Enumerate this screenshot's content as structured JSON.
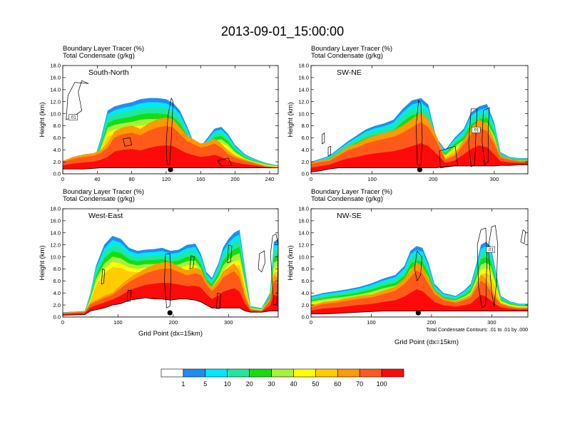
{
  "title": "2013-09-01_15:00:00",
  "colors": {
    "contour_line": "#000000",
    "marker": "#000000"
  },
  "colorbar": {
    "levels": [
      "1",
      "5",
      "10",
      "20",
      "30",
      "40",
      "50",
      "60",
      "70",
      "100"
    ],
    "colors": [
      "#ffffff",
      "#1e8ef0",
      "#00e8ff",
      "#1fe89a",
      "#14dd10",
      "#a8f03a",
      "#ffff00",
      "#ffcc00",
      "#ff9a00",
      "#ff5a1a",
      "#ff0a0a"
    ]
  },
  "chart_data": [
    {
      "type": "heatmap",
      "panel_label": "South-North",
      "subtitle_1": "Boundary Layer Tracer   (%)",
      "subtitle_2": "Total Condensate   (g/kg)",
      "ylabel": "Height (km)",
      "xlabel": "",
      "xlim": [
        0,
        250
      ],
      "ylim": [
        0,
        18
      ],
      "xticks": [
        "0",
        "40",
        "80",
        "120",
        "160",
        "200",
        "240"
      ],
      "xtick_values": [
        0,
        40,
        80,
        120,
        160,
        200,
        240
      ],
      "yticks": [
        "0.0",
        "2.0",
        "4.0",
        "6.0",
        "8.0",
        "10.0",
        "12.0",
        "14.0",
        "16.0",
        "18.0"
      ],
      "marker_x": 125,
      "contour_tag": ".01",
      "contour_tag_pos": [
        12,
        9.4
      ],
      "columns": [
        [
          0,
          0.8,
          1.8,
          0
        ],
        [
          12,
          0.8,
          2.3,
          0
        ],
        [
          24,
          0.8,
          2.6,
          0
        ],
        [
          36,
          0.9,
          2.8,
          2.2
        ],
        [
          44,
          1.0,
          3.2,
          5.8
        ],
        [
          52,
          1.0,
          4.0,
          10.5
        ],
        [
          60,
          1.0,
          5.5,
          11.2
        ],
        [
          70,
          1.0,
          6.0,
          11.6
        ],
        [
          80,
          1.0,
          6.2,
          11.9
        ],
        [
          90,
          1.0,
          5.8,
          12.4
        ],
        [
          100,
          1.0,
          6.5,
          12.6
        ],
        [
          110,
          1.0,
          7.0,
          12.6
        ],
        [
          120,
          1.0,
          7.2,
          12.4
        ],
        [
          128,
          1.0,
          7.0,
          11.8
        ],
        [
          136,
          1.0,
          6.0,
          10.5
        ],
        [
          144,
          1.0,
          5.0,
          8.0
        ],
        [
          152,
          1.0,
          4.5,
          5.2
        ],
        [
          160,
          1.0,
          4.0,
          4.6
        ],
        [
          168,
          1.0,
          4.2,
          6.0
        ],
        [
          176,
          1.0,
          4.6,
          7.5
        ],
        [
          184,
          1.0,
          4.0,
          7.8
        ],
        [
          192,
          1.0,
          3.0,
          6.6
        ],
        [
          200,
          1.0,
          2.5,
          4.8
        ],
        [
          212,
          1.0,
          2.0,
          3.2
        ],
        [
          224,
          1.0,
          1.6,
          2.4
        ],
        [
          236,
          1.0,
          1.2,
          1.8
        ],
        [
          250,
          1.0,
          1.0,
          1.4
        ]
      ],
      "contours": [
        [
          [
            30,
            15
          ],
          [
            22,
            15.5
          ],
          [
            18,
            13.6
          ],
          [
            22,
            10.5
          ],
          [
            12,
            9.5
          ],
          [
            4,
            9.0
          ],
          [
            6,
            13.0
          ],
          [
            14,
            15.2
          ]
        ],
        [
          [
            122,
            9.6
          ],
          [
            120,
            5.0
          ],
          [
            121,
            1.5
          ],
          [
            124,
            1.6
          ],
          [
            126,
            6.0
          ],
          [
            128,
            12.0
          ],
          [
            126,
            12.6
          ]
        ],
        [
          [
            70,
            5.8
          ],
          [
            78,
            6.0
          ],
          [
            80,
            4.8
          ],
          [
            72,
            4.6
          ]
        ],
        [
          [
            180,
            2.2
          ],
          [
            192,
            2.6
          ],
          [
            196,
            1.4
          ],
          [
            184,
            1.3
          ]
        ]
      ]
    },
    {
      "type": "heatmap",
      "panel_label": "SW-NE",
      "subtitle_1": "Boundary Layer Tracer   (%)",
      "subtitle_2": "Total Condensate   (g/kg)",
      "ylabel": "Height (km)",
      "xlabel": "",
      "xlim": [
        0,
        355
      ],
      "ylim": [
        0,
        18
      ],
      "xticks": [
        "0",
        "100",
        "200",
        "300"
      ],
      "xtick_values": [
        0,
        100,
        200,
        300
      ],
      "yticks": [
        "0.0",
        "2.0",
        "4.0",
        "6.0",
        "8.0",
        "10.0",
        "12.0",
        "14.0",
        "16.0",
        "18.0"
      ],
      "marker_x": 178,
      "contour_tag": ".01",
      "contour_tag_pos": [
        270,
        7.3
      ],
      "columns": [
        [
          0,
          0.3,
          1.5,
          2.0
        ],
        [
          15,
          0.5,
          1.8,
          2.5
        ],
        [
          30,
          0.8,
          2.0,
          3.0
        ],
        [
          45,
          1.0,
          2.8,
          4.2
        ],
        [
          60,
          1.0,
          3.6,
          5.4
        ],
        [
          75,
          1.0,
          4.0,
          6.4
        ],
        [
          90,
          1.0,
          4.6,
          7.4
        ],
        [
          105,
          1.0,
          5.0,
          8.0
        ],
        [
          120,
          1.0,
          5.3,
          8.4
        ],
        [
          135,
          1.0,
          5.6,
          9.0
        ],
        [
          150,
          1.0,
          6.2,
          10.8
        ],
        [
          165,
          1.0,
          7.0,
          12.2
        ],
        [
          180,
          1.0,
          7.8,
          12.6
        ],
        [
          192,
          1.0,
          7.0,
          11.5
        ],
        [
          205,
          1.0,
          5.0,
          6.0
        ],
        [
          220,
          1.2,
          2.2,
          4.0
        ],
        [
          235,
          1.3,
          2.8,
          6.0
        ],
        [
          250,
          1.3,
          4.5,
          7.5
        ],
        [
          262,
          1.3,
          6.0,
          10.2
        ],
        [
          275,
          1.3,
          7.0,
          11.2
        ],
        [
          288,
          1.3,
          6.5,
          11.6
        ],
        [
          300,
          1.3,
          4.5,
          8.5
        ],
        [
          310,
          1.4,
          2.6,
          3.6
        ],
        [
          325,
          1.4,
          2.2,
          2.8
        ],
        [
          340,
          1.5,
          2.0,
          2.6
        ],
        [
          355,
          1.5,
          2.0,
          2.6
        ]
      ],
      "contours": [
        [
          [
            176,
            12.2
          ],
          [
            172,
            8.0
          ],
          [
            174,
            1.5
          ],
          [
            180,
            1.4
          ],
          [
            182,
            6.0
          ],
          [
            180,
            11.6
          ]
        ],
        [
          [
            262,
            10.8
          ],
          [
            258,
            5.0
          ],
          [
            262,
            1.2
          ],
          [
            268,
            1.5
          ],
          [
            270,
            7.0
          ],
          [
            272,
            10.8
          ]
        ],
        [
          [
            282,
            10.5
          ],
          [
            280,
            5.5
          ],
          [
            284,
            1.5
          ],
          [
            290,
            2.0
          ],
          [
            290,
            7.5
          ],
          [
            292,
            11.0
          ]
        ],
        [
          [
            210,
            3.8
          ],
          [
            236,
            4.6
          ],
          [
            240,
            1.4
          ],
          [
            212,
            1.0
          ]
        ],
        [
          [
            18,
            6.5
          ],
          [
            22,
            6.8
          ],
          [
            22,
            5.2
          ],
          [
            18,
            5.0
          ]
        ],
        [
          [
            28,
            4.4
          ],
          [
            32,
            4.6
          ],
          [
            32,
            3.2
          ],
          [
            28,
            3.0
          ]
        ]
      ]
    },
    {
      "type": "heatmap",
      "panel_label": "West-East",
      "subtitle_1": "Boundary Layer Tracer   (%)",
      "subtitle_2": "Total Condensate   (g/kg)",
      "ylabel": "Height (km)",
      "xlabel": "Grid Point (dx=15km)",
      "xlim": [
        0,
        390
      ],
      "ylim": [
        0,
        18
      ],
      "xticks": [
        "0",
        "100",
        "200",
        "300"
      ],
      "xtick_values": [
        0,
        100,
        200,
        300
      ],
      "yticks": [
        "0.0",
        "2.0",
        "4.0",
        "6.0",
        "8.0",
        "10.0",
        "12.0",
        "14.0",
        "16.0",
        "18.0"
      ],
      "marker_x": 194,
      "contour_tag": "",
      "contour_tag_pos": [
        0,
        0
      ],
      "columns": [
        [
          0,
          0.3,
          0.6,
          0.8
        ],
        [
          40,
          0.4,
          0.8,
          1.0
        ],
        [
          50,
          1.0,
          2.0,
          4.0
        ],
        [
          60,
          1.2,
          2.4,
          8.5
        ],
        [
          75,
          1.5,
          3.0,
          12.0
        ],
        [
          90,
          2.0,
          3.5,
          13.5
        ],
        [
          105,
          2.2,
          4.5,
          13.0
        ],
        [
          120,
          2.8,
          5.5,
          11.5
        ],
        [
          135,
          3.0,
          6.2,
          11.0
        ],
        [
          150,
          3.2,
          6.8,
          11.2
        ],
        [
          165,
          3.0,
          7.2,
          11.3
        ],
        [
          180,
          3.0,
          7.5,
          11.5
        ],
        [
          195,
          2.8,
          7.5,
          11.0
        ],
        [
          210,
          3.0,
          7.0,
          11.2
        ],
        [
          225,
          3.0,
          6.5,
          12.0
        ],
        [
          240,
          2.8,
          6.8,
          12.2
        ],
        [
          250,
          2.5,
          6.5,
          10.5
        ],
        [
          260,
          2.0,
          5.0,
          7.5
        ],
        [
          270,
          1.5,
          4.0,
          6.5
        ],
        [
          282,
          1.5,
          5.0,
          9.0
        ],
        [
          290,
          1.5,
          6.0,
          11.5
        ],
        [
          300,
          1.5,
          6.5,
          13.0
        ],
        [
          310,
          1.5,
          7.0,
          14.0
        ],
        [
          320,
          1.5,
          6.0,
          14.5
        ],
        [
          330,
          1.0,
          3.0,
          8.0
        ],
        [
          340,
          0.8,
          1.2,
          1.8
        ],
        [
          360,
          0.8,
          1.0,
          1.5
        ],
        [
          375,
          1.0,
          2.5,
          4.0
        ],
        [
          382,
          1.0,
          5.5,
          12.5
        ],
        [
          390,
          1.0,
          5.0,
          13.0
        ]
      ],
      "contours": [
        [
          [
            186,
            10.5
          ],
          [
            184,
            6.0
          ],
          [
            188,
            1.5
          ],
          [
            194,
            1.8
          ],
          [
            196,
            7.0
          ],
          [
            194,
            10.5
          ]
        ],
        [
          [
            232,
            10.2
          ],
          [
            230,
            8.0
          ],
          [
            236,
            8.2
          ],
          [
            238,
            10.0
          ]
        ],
        [
          [
            118,
            4.5
          ],
          [
            116,
            2.6
          ],
          [
            122,
            2.6
          ],
          [
            124,
            4.4
          ]
        ],
        [
          [
            72,
            8.0
          ],
          [
            70,
            5.5
          ],
          [
            74,
            5.6
          ],
          [
            76,
            7.8
          ]
        ],
        [
          [
            280,
            4.0
          ],
          [
            278,
            1.4
          ],
          [
            284,
            1.4
          ],
          [
            286,
            3.8
          ]
        ],
        [
          [
            365,
            11.0
          ],
          [
            356,
            10.5
          ],
          [
            354,
            8.0
          ],
          [
            360,
            7.5
          ],
          [
            366,
            9.0
          ]
        ],
        [
          [
            380,
            13.5
          ],
          [
            376,
            10.5
          ],
          [
            382,
            2.0
          ],
          [
            388,
            2.2
          ],
          [
            390,
            12.0
          ],
          [
            386,
            13.8
          ]
        ],
        [
          [
            300,
            12.0
          ],
          [
            298,
            9.0
          ],
          [
            304,
            9.2
          ],
          [
            306,
            11.8
          ]
        ]
      ]
    },
    {
      "type": "heatmap",
      "panel_label": "NW-SE",
      "subtitle_1": "Boundary Layer Tracer   (%)",
      "subtitle_2": "Total Condensate   (g/kg)",
      "ylabel": "Height (km)",
      "xlabel": "Grid Point (dx=15km)",
      "note": "Total Condensate Contours: .01 to .01 by .000",
      "xlim": [
        0,
        360
      ],
      "ylim": [
        0,
        18
      ],
      "xticks": [
        "0",
        "100",
        "200",
        "300"
      ],
      "xtick_values": [
        0,
        100,
        200,
        300
      ],
      "yticks": [
        "0.0",
        "2.0",
        "4.0",
        "6.0",
        "8.0",
        "10.0",
        "12.0",
        "14.0",
        "16.0",
        "18.0"
      ],
      "marker_x": 178,
      "contour_tag": ".01",
      "contour_tag_pos": [
        298,
        11.2
      ],
      "columns": [
        [
          0,
          0.5,
          1.5,
          3.5
        ],
        [
          20,
          0.5,
          2.0,
          4.0
        ],
        [
          40,
          0.6,
          2.2,
          4.3
        ],
        [
          60,
          0.7,
          2.5,
          4.6
        ],
        [
          80,
          0.8,
          2.8,
          5.0
        ],
        [
          100,
          0.9,
          3.0,
          5.6
        ],
        [
          120,
          1.0,
          3.5,
          6.4
        ],
        [
          140,
          1.0,
          4.0,
          7.0
        ],
        [
          155,
          1.0,
          5.0,
          8.5
        ],
        [
          165,
          1.0,
          6.0,
          11.0
        ],
        [
          175,
          1.0,
          7.0,
          11.8
        ],
        [
          185,
          1.0,
          6.5,
          11.5
        ],
        [
          195,
          1.0,
          5.0,
          9.0
        ],
        [
          205,
          1.0,
          3.5,
          5.5
        ],
        [
          220,
          1.0,
          2.6,
          4.0
        ],
        [
          240,
          1.0,
          2.2,
          3.5
        ],
        [
          255,
          1.0,
          2.6,
          4.5
        ],
        [
          265,
          1.0,
          3.0,
          5.5
        ],
        [
          275,
          1.0,
          4.5,
          9.0
        ],
        [
          282,
          1.0,
          5.5,
          12.0
        ],
        [
          290,
          1.0,
          5.0,
          12.5
        ],
        [
          298,
          1.0,
          4.0,
          11.8
        ],
        [
          305,
          1.0,
          3.0,
          8.5
        ],
        [
          315,
          1.0,
          2.0,
          3.5
        ],
        [
          330,
          1.0,
          1.6,
          2.6
        ],
        [
          345,
          1.0,
          1.4,
          2.2
        ],
        [
          360,
          1.0,
          1.4,
          2.2
        ]
      ],
      "contours": [
        [
          [
            282,
            14.5
          ],
          [
            276,
            12.0
          ],
          [
            278,
            5.0
          ],
          [
            284,
            1.5
          ],
          [
            290,
            2.0
          ],
          [
            292,
            10.0
          ],
          [
            290,
            14.8
          ]
        ],
        [
          [
            300,
            15.0
          ],
          [
            294,
            11.5
          ],
          [
            300,
            4.0
          ],
          [
            304,
            1.8
          ],
          [
            308,
            6.0
          ],
          [
            310,
            12.0
          ],
          [
            306,
            15.2
          ]
        ],
        [
          [
            176,
            11.0
          ],
          [
            172,
            8.0
          ],
          [
            176,
            6.0
          ],
          [
            182,
            7.0
          ],
          [
            184,
            10.0
          ]
        ],
        [
          [
            352,
            14.5
          ],
          [
            348,
            12.5
          ],
          [
            354,
            12.2
          ],
          [
            356,
            14.2
          ]
        ]
      ]
    }
  ]
}
